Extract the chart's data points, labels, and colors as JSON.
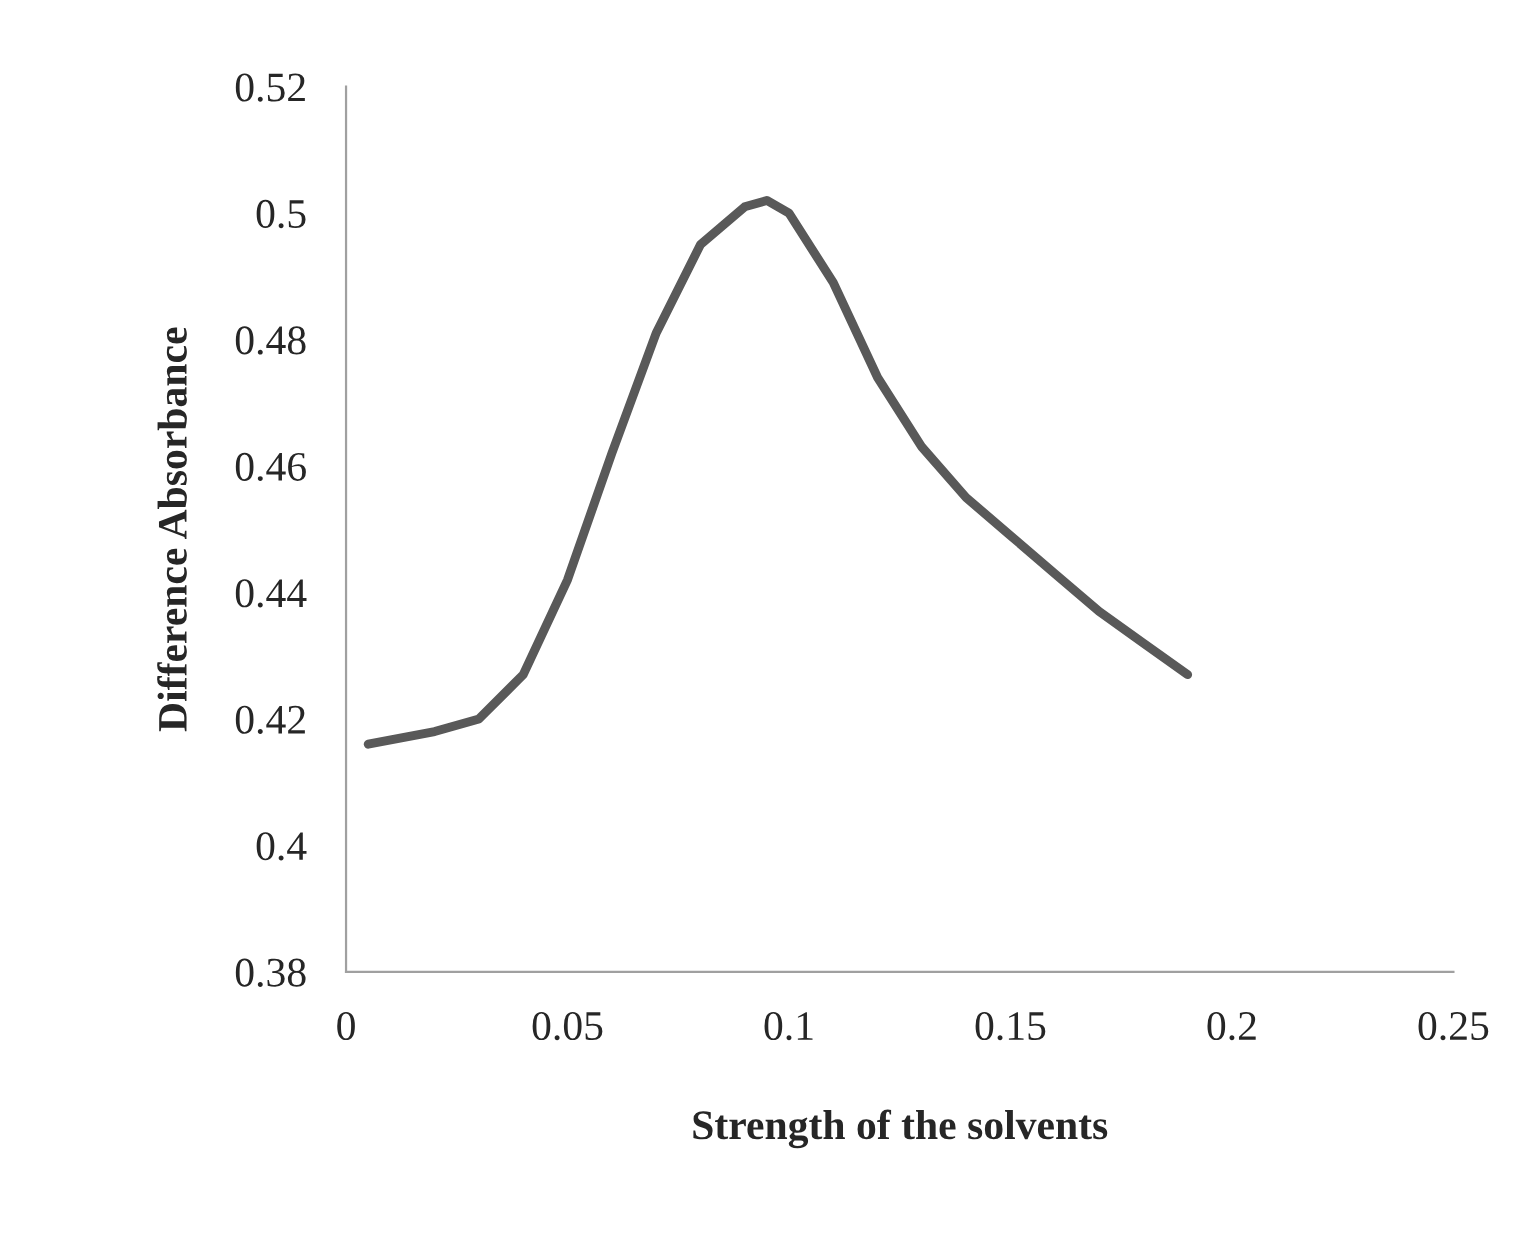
{
  "chart_data": {
    "type": "line",
    "xlabel": "Strength of the solvents",
    "ylabel": "Difference Absorbance",
    "xlim": [
      0,
      0.25
    ],
    "xticks": [
      0,
      0.05,
      0.1,
      0.15,
      0.2,
      0.25
    ],
    "ylim": [
      0.38,
      0.52
    ],
    "yticks": [
      0.38,
      0.4,
      0.42,
      0.44,
      0.46,
      0.48,
      0.5,
      0.52
    ],
    "grid": false,
    "marker": "none",
    "line_style": "solid",
    "series": [
      {
        "color": "#595959",
        "x": [
          0.005,
          0.02,
          0.03,
          0.04,
          0.05,
          0.06,
          0.07,
          0.08,
          0.09,
          0.095,
          0.1,
          0.11,
          0.12,
          0.13,
          0.14,
          0.15,
          0.16,
          0.17,
          0.18,
          0.19
        ],
        "values": [
          0.416,
          0.418,
          0.42,
          0.427,
          0.442,
          0.462,
          0.481,
          0.495,
          0.501,
          0.502,
          0.5,
          0.489,
          0.474,
          0.463,
          0.455,
          0.449,
          0.443,
          0.437,
          0.432,
          0.427
        ]
      }
    ]
  }
}
